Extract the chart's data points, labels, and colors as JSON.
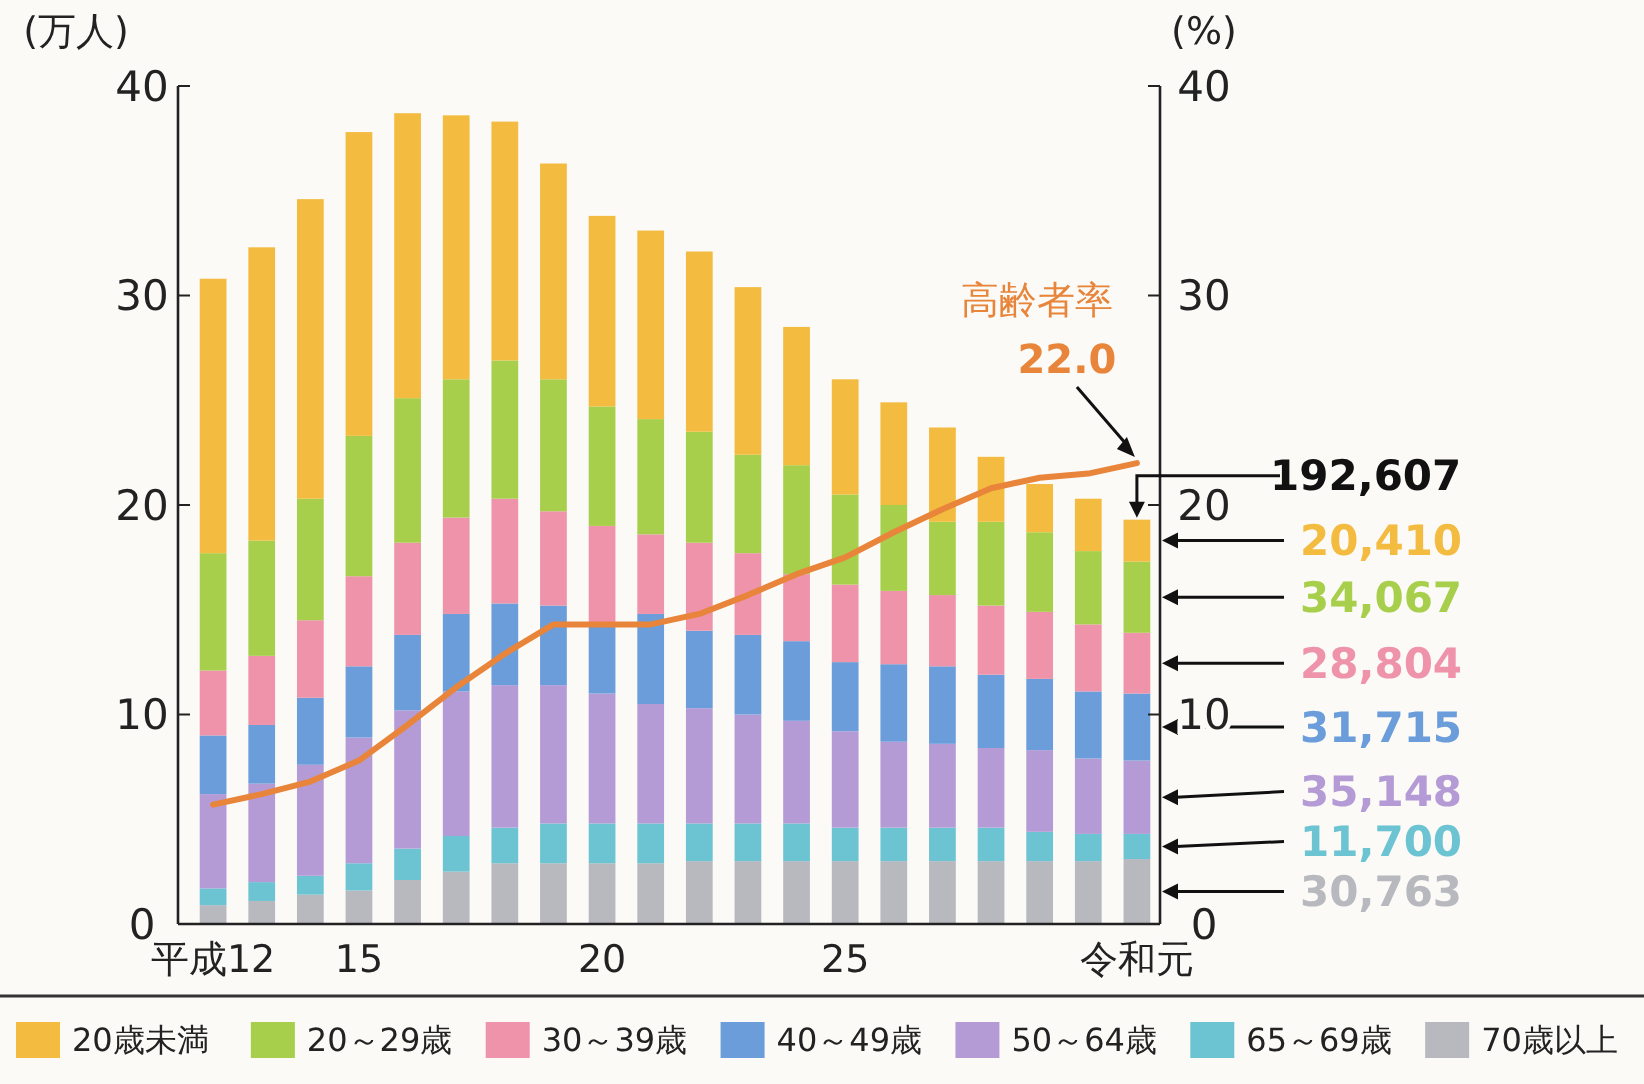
{
  "chart_data": {
    "type": "bar",
    "stacked": true,
    "ylabel": "(万人)",
    "y2label": "(%)",
    "categories": [
      "平成12",
      null,
      null,
      "15",
      null,
      null,
      null,
      null,
      "20",
      null,
      null,
      null,
      null,
      "25",
      null,
      null,
      null,
      null,
      null,
      "令和元"
    ],
    "ylim": [
      0,
      40
    ],
    "yticks": [
      0,
      10,
      20,
      30,
      40
    ],
    "y2lim": [
      0,
      40
    ],
    "y2ticks": [
      0,
      10,
      20,
      30,
      40
    ],
    "grid": false,
    "legend": "bottom",
    "series": [
      {
        "name": "70歳以上",
        "color": "#b8b9bf",
        "values": [
          0.9,
          1.1,
          1.4,
          1.6,
          2.1,
          2.5,
          2.9,
          2.9,
          2.9,
          2.9,
          3.0,
          3.0,
          3.0,
          3.0,
          3.0,
          3.0,
          3.0,
          3.0,
          3.0,
          3.1
        ]
      },
      {
        "name": "65～69歳",
        "color": "#6cc4d3",
        "values": [
          0.8,
          0.9,
          0.9,
          1.3,
          1.5,
          1.7,
          1.7,
          1.9,
          1.9,
          1.9,
          1.8,
          1.8,
          1.8,
          1.6,
          1.6,
          1.6,
          1.6,
          1.4,
          1.3,
          1.2
        ]
      },
      {
        "name": "50～64歳",
        "color": "#b59bd6",
        "values": [
          4.5,
          4.7,
          5.3,
          6.0,
          6.6,
          6.9,
          6.8,
          6.6,
          6.2,
          5.7,
          5.5,
          5.2,
          4.9,
          4.6,
          4.1,
          4.0,
          3.8,
          3.9,
          3.6,
          3.5
        ]
      },
      {
        "name": "40～49歳",
        "color": "#6b9ddb",
        "values": [
          2.8,
          2.8,
          3.2,
          3.4,
          3.6,
          3.7,
          3.9,
          3.8,
          3.3,
          4.3,
          3.7,
          3.8,
          3.8,
          3.3,
          3.7,
          3.7,
          3.5,
          3.4,
          3.2,
          3.2
        ]
      },
      {
        "name": "30～39歳",
        "color": "#ee93aa",
        "values": [
          3.1,
          3.3,
          3.7,
          4.3,
          4.4,
          4.6,
          5.0,
          4.5,
          4.7,
          3.8,
          4.2,
          3.9,
          3.2,
          3.7,
          3.5,
          3.4,
          3.3,
          3.2,
          3.2,
          2.9
        ]
      },
      {
        "name": "20～29歳",
        "color": "#a8cf4c",
        "values": [
          5.6,
          5.5,
          5.8,
          6.7,
          6.9,
          6.6,
          6.6,
          6.3,
          5.7,
          5.5,
          5.3,
          4.7,
          5.2,
          4.3,
          4.1,
          3.5,
          4.0,
          3.8,
          3.5,
          3.4
        ]
      },
      {
        "name": "20歳未満",
        "color": "#f3bb3f",
        "values": [
          13.1,
          14.0,
          14.3,
          14.5,
          13.6,
          12.6,
          11.4,
          10.3,
          9.1,
          9.0,
          8.6,
          8.0,
          6.6,
          5.5,
          4.9,
          4.5,
          3.1,
          2.3,
          2.5,
          2.0
        ]
      },
      {
        "name": "高齢者率",
        "type": "line",
        "axis": "y2",
        "color": "#e8853a",
        "values": [
          5.7,
          6.2,
          6.8,
          7.8,
          9.5,
          11.3,
          12.9,
          14.3,
          14.3,
          14.3,
          14.8,
          15.7,
          16.7,
          17.5,
          18.7,
          19.8,
          20.8,
          21.3,
          21.5,
          22.0
        ]
      }
    ],
    "annotations": [
      {
        "text": "22.0",
        "x": "令和元",
        "y": 22.0
      },
      "192,607",
      "20,410",
      "34,067",
      "28,804",
      "31,715",
      "35,148",
      "11,700",
      "30,763"
    ]
  }
}
